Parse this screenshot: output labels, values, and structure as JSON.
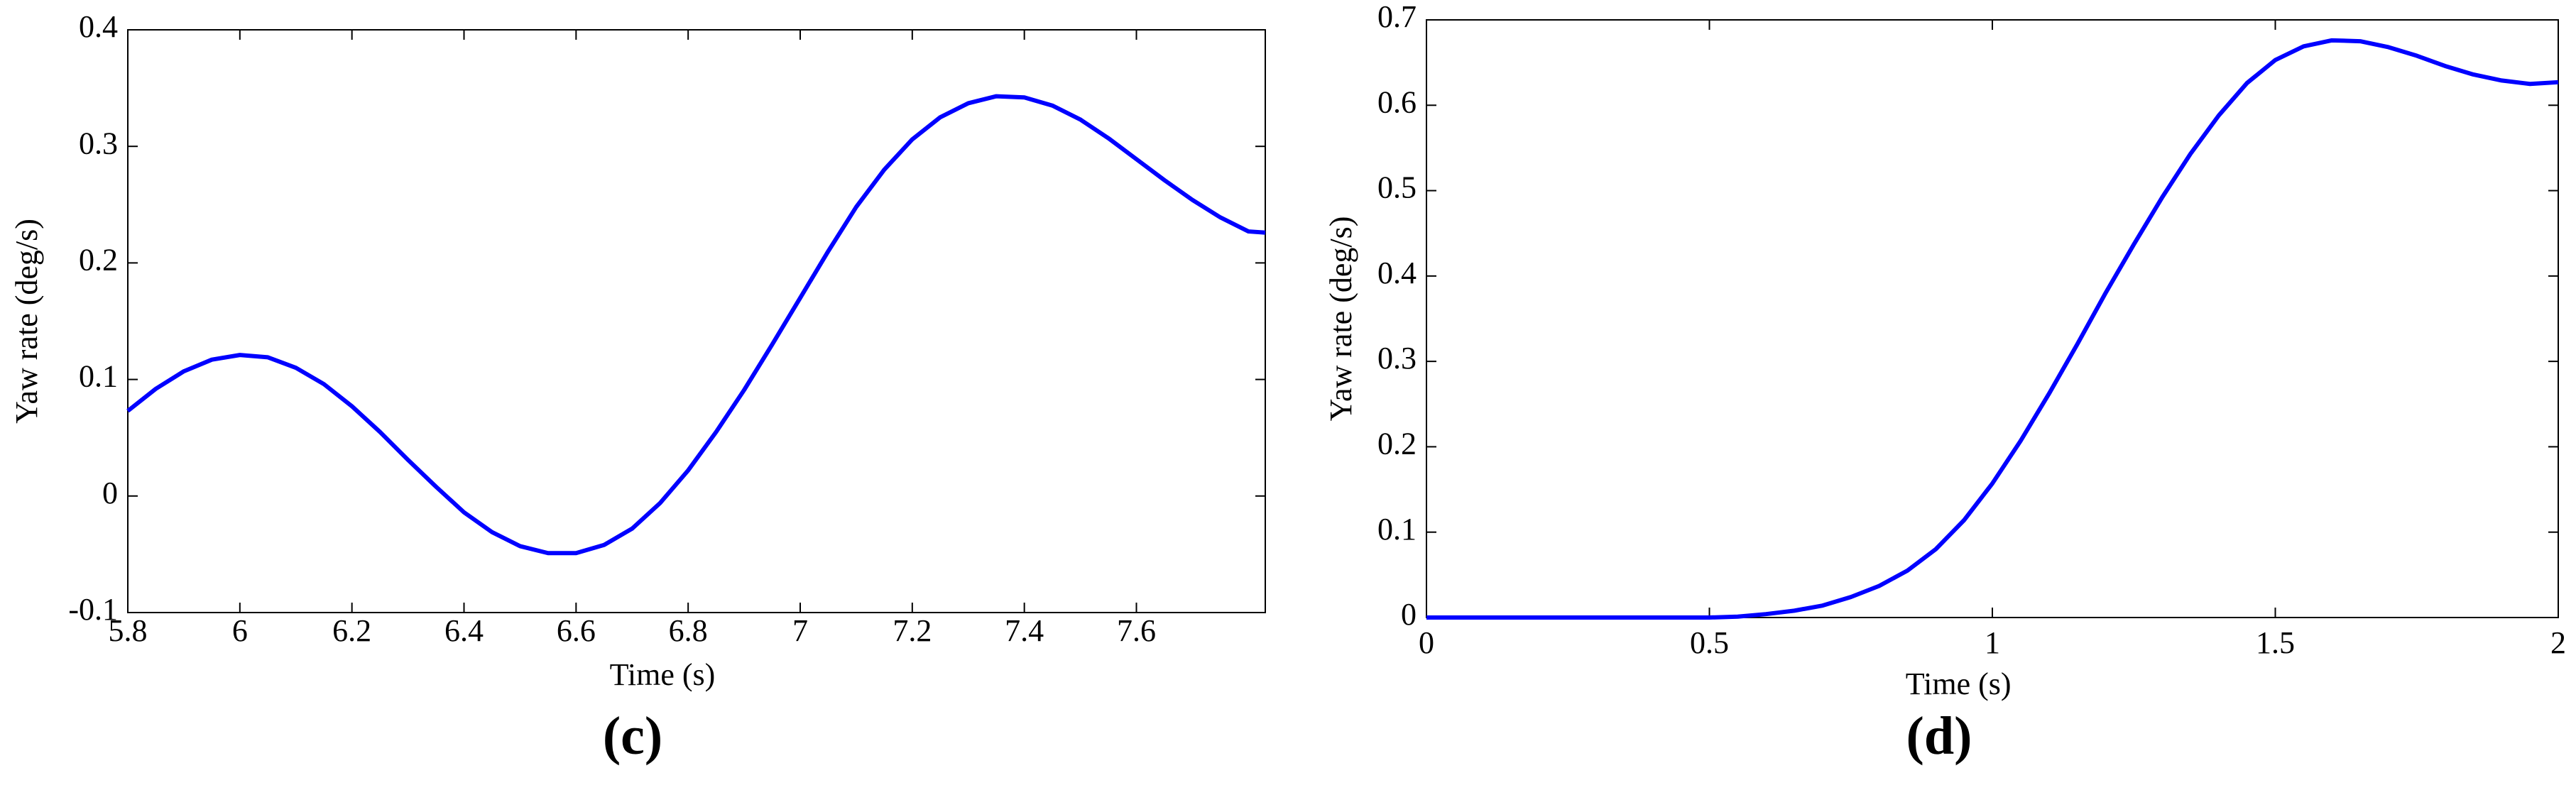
{
  "chart_data": [
    {
      "type": "line",
      "label": "(c)",
      "xlabel": "Time (s)",
      "ylabel": "Yaw rate (deg/s)",
      "xlim": [
        5.8,
        7.83
      ],
      "xticks": [
        5.8,
        6,
        6.2,
        6.4,
        6.6,
        6.8,
        7,
        7.2,
        7.4,
        7.6
      ],
      "ylim": [
        -0.1,
        0.4
      ],
      "yticks": [
        -0.1,
        0,
        0.1,
        0.2,
        0.3,
        0.4
      ],
      "color": "#0000ff",
      "x": [
        5.8,
        5.85,
        5.9,
        5.95,
        6.0,
        6.05,
        6.1,
        6.15,
        6.2,
        6.25,
        6.3,
        6.35,
        6.4,
        6.45,
        6.5,
        6.55,
        6.6,
        6.65,
        6.7,
        6.75,
        6.8,
        6.85,
        6.9,
        6.95,
        7.0,
        7.05,
        7.1,
        7.15,
        7.2,
        7.25,
        7.3,
        7.35,
        7.4,
        7.45,
        7.5,
        7.55,
        7.6,
        7.65,
        7.7,
        7.75,
        7.8,
        7.83
      ],
      "values": [
        0.073,
        0.092,
        0.107,
        0.117,
        0.121,
        0.119,
        0.11,
        0.096,
        0.077,
        0.055,
        0.031,
        0.008,
        -0.014,
        -0.031,
        -0.043,
        -0.049,
        -0.049,
        -0.042,
        -0.028,
        -0.006,
        0.022,
        0.055,
        0.091,
        0.13,
        0.17,
        0.21,
        0.248,
        0.28,
        0.306,
        0.325,
        0.337,
        0.343,
        0.342,
        0.335,
        0.323,
        0.307,
        0.289,
        0.271,
        0.254,
        0.239,
        0.227,
        0.226
      ]
    },
    {
      "type": "line",
      "label": "(d)",
      "xlabel": "Time (s)",
      "ylabel": "Yaw rate (deg/s)",
      "xlim": [
        0,
        2
      ],
      "xticks": [
        0,
        0.5,
        1,
        1.5,
        2
      ],
      "ylim": [
        0,
        0.7
      ],
      "yticks": [
        0,
        0.1,
        0.2,
        0.3,
        0.4,
        0.5,
        0.6,
        0.7
      ],
      "color": "#0000ff",
      "x": [
        0,
        0.05,
        0.1,
        0.15,
        0.2,
        0.25,
        0.3,
        0.35,
        0.4,
        0.45,
        0.5,
        0.55,
        0.6,
        0.65,
        0.7,
        0.75,
        0.8,
        0.85,
        0.9,
        0.95,
        1.0,
        1.05,
        1.1,
        1.15,
        1.2,
        1.25,
        1.3,
        1.35,
        1.4,
        1.45,
        1.5,
        1.55,
        1.6,
        1.65,
        1.7,
        1.75,
        1.8,
        1.85,
        1.9,
        1.95,
        2.0
      ],
      "values": [
        0,
        0,
        0,
        0,
        0,
        0,
        0,
        0,
        0,
        0,
        0,
        0.001,
        0.004,
        0.008,
        0.014,
        0.024,
        0.037,
        0.055,
        0.08,
        0.114,
        0.157,
        0.207,
        0.262,
        0.32,
        0.38,
        0.437,
        0.492,
        0.543,
        0.588,
        0.626,
        0.653,
        0.669,
        0.676,
        0.675,
        0.668,
        0.658,
        0.646,
        0.636,
        0.629,
        0.625,
        0.627
      ]
    }
  ]
}
